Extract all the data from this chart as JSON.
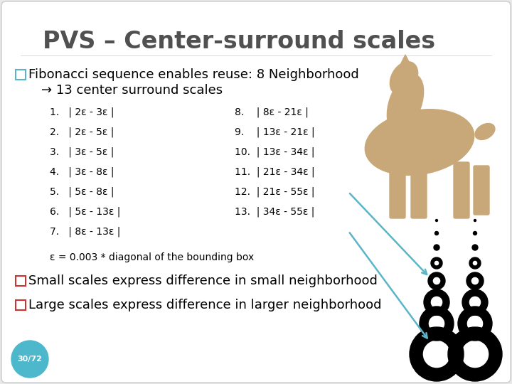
{
  "title": "PVS – Center-surround scales",
  "bg_color": "#e8e8e8",
  "slide_bg": "#ffffff",
  "title_color": "#505050",
  "text_color": "#000000",
  "bullet1_color": "#5bb5c8",
  "bullet2_color": "#cc3333",
  "bullet3_color": "#cc3333",
  "bullet1_text": "Fibonacci sequence enables reuse: 8 Neighborhood",
  "bullet1_text2": "→ 13 center surround scales",
  "list_left": [
    "1.   | 2ε - 3ε |",
    "2.   | 2ε - 5ε |",
    "3.   | 3ε - 5ε |",
    "4.   | 3ε - 8ε |",
    "5.   | 5ε - 8ε |",
    "6.   | 5ε - 13ε |",
    "7.   | 8ε - 13ε |"
  ],
  "list_right": [
    "8.    | 8ε - 21ε |",
    "9.    | 13ε - 21ε |",
    "10.  | 13ε - 34ε |",
    "11.  | 21ε - 34ε |",
    "12.  | 21ε - 55ε |",
    "13.  | 34ε - 55ε |"
  ],
  "epsilon_text": "ε = 0.003 * diagonal of the bounding box",
  "bullet2_text": "Small scales express difference in small neighborhood",
  "bullet3_text": "Large scales express difference in larger neighborhood",
  "page_num": "30/72",
  "page_bg": "#4db8cc",
  "arrow_color": "#5bb5c8",
  "horse_color": "#c8a878"
}
